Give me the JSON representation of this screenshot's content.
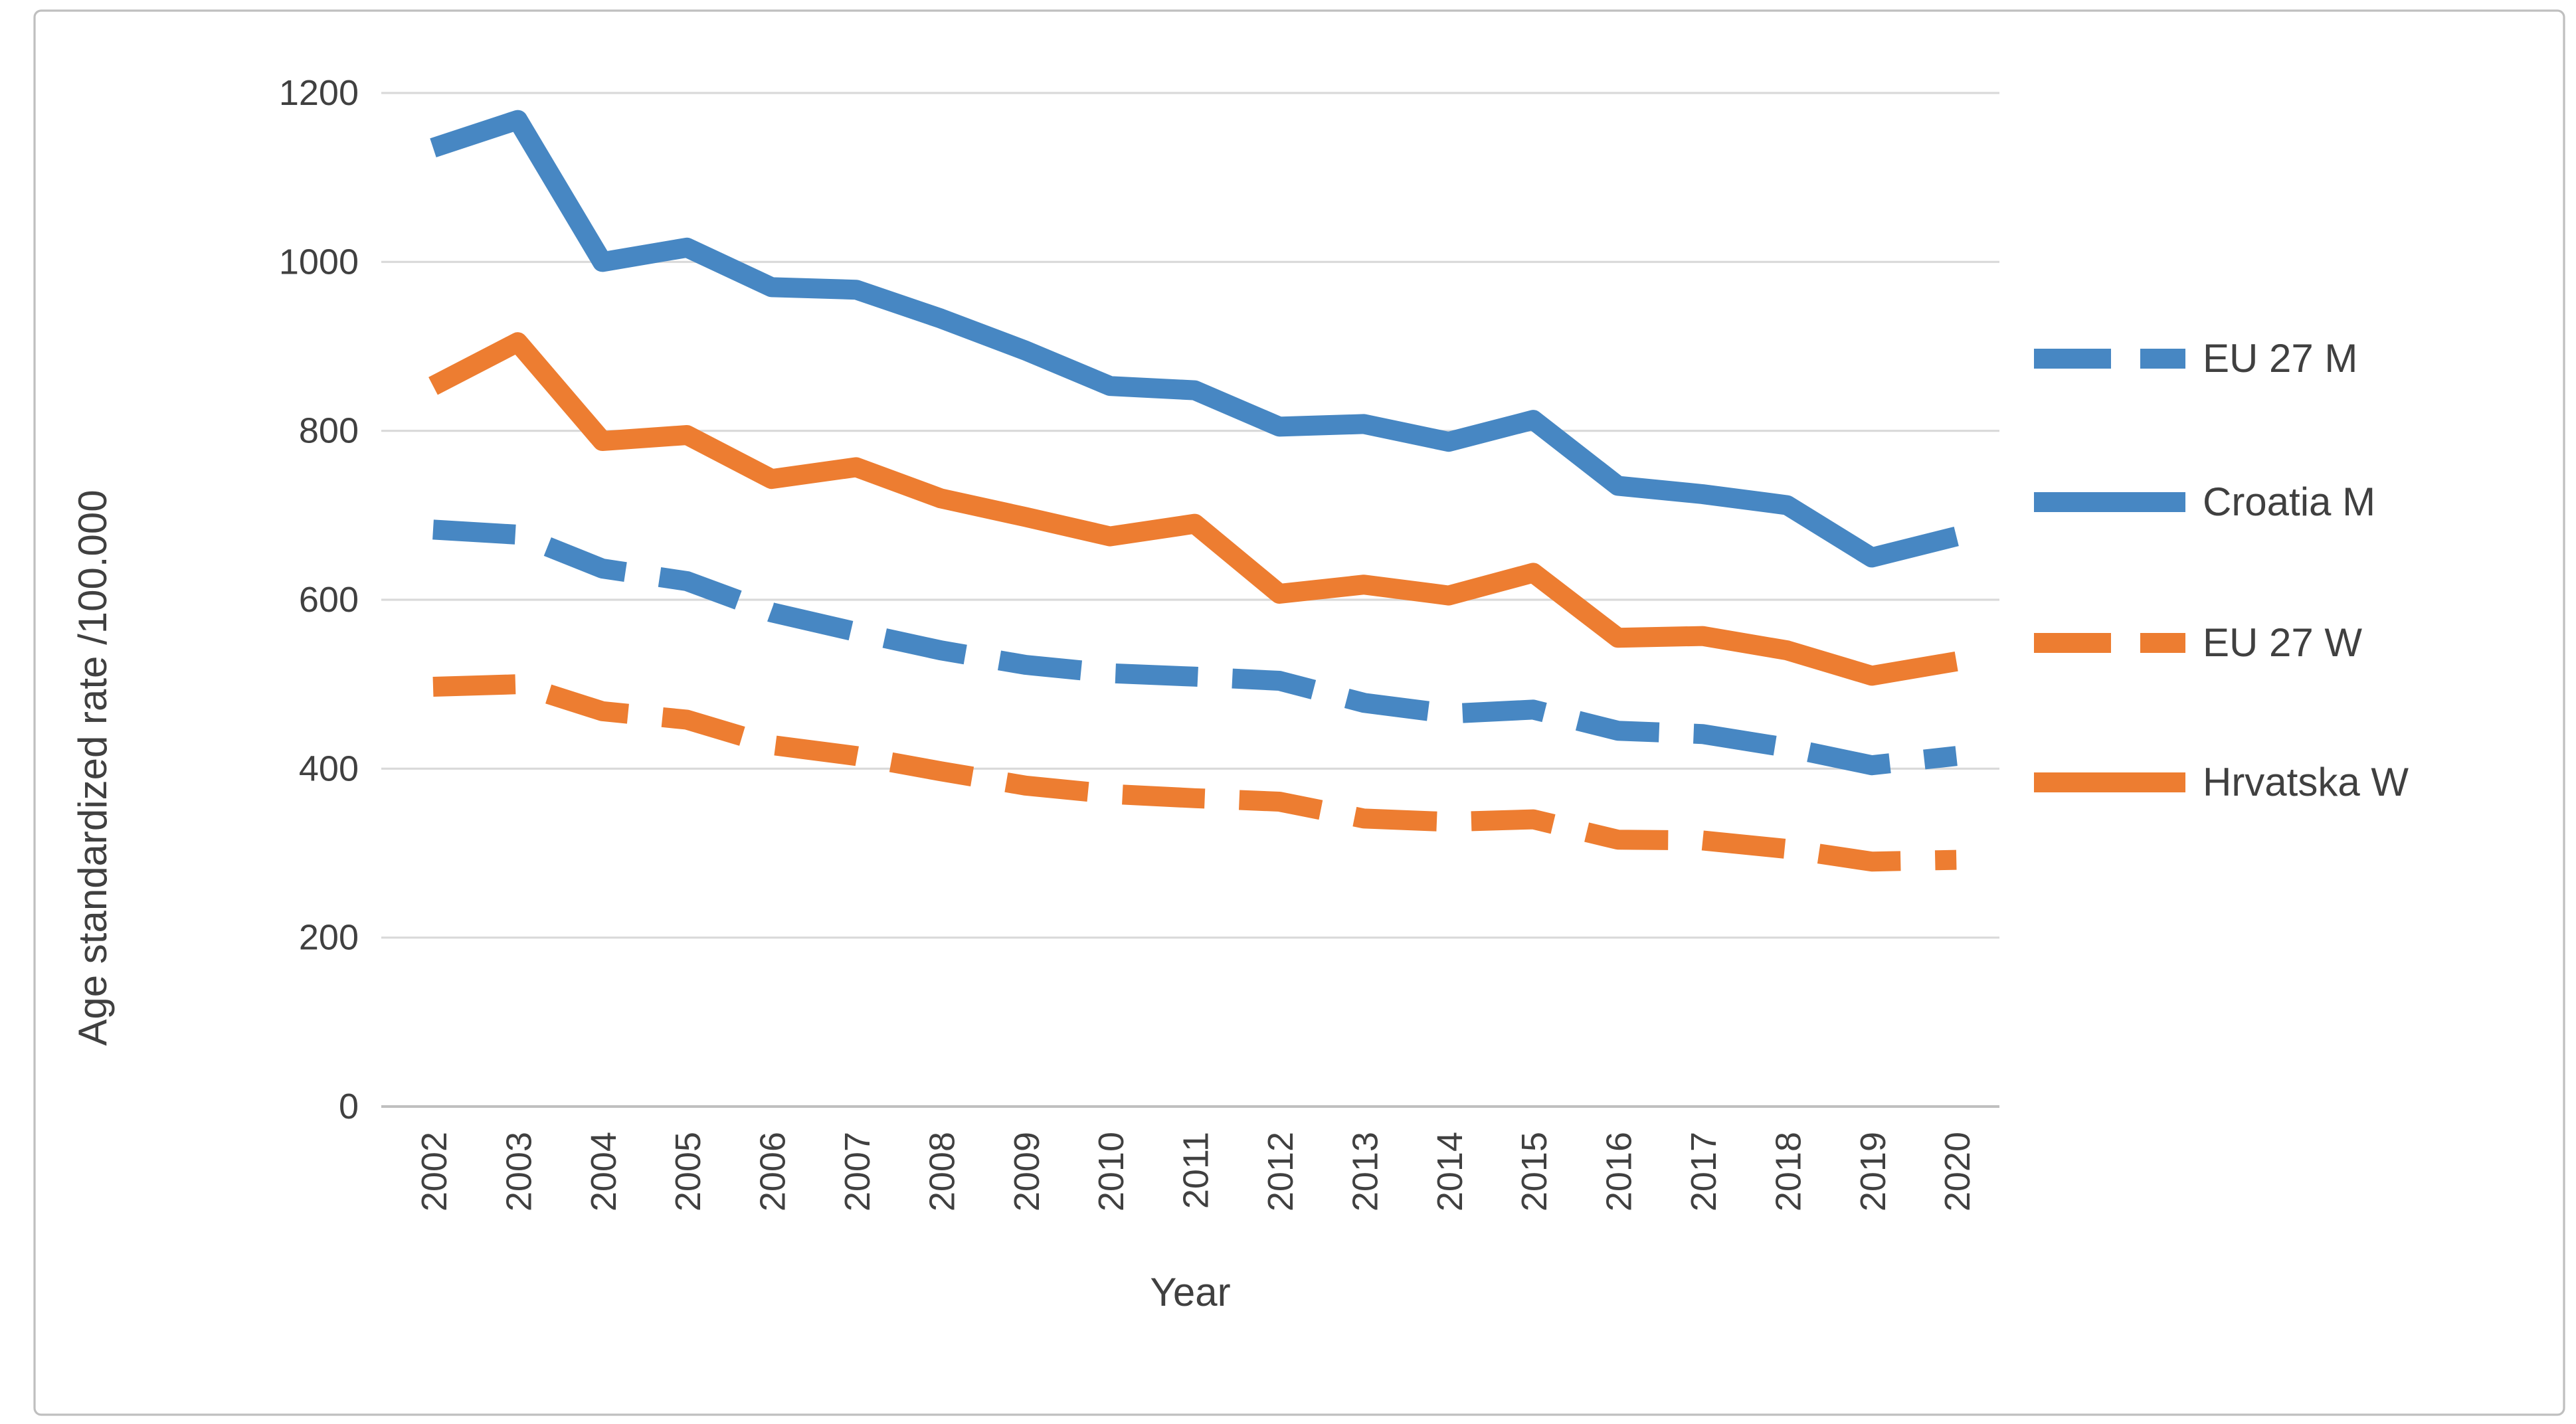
{
  "chart_data": {
    "type": "line",
    "title": "",
    "xlabel": "Year",
    "ylabel": "Age standardized rate /100.000",
    "x": [
      2002,
      2003,
      2004,
      2005,
      2006,
      2007,
      2008,
      2009,
      2010,
      2011,
      2012,
      2013,
      2014,
      2015,
      2016,
      2017,
      2018,
      2019,
      2020
    ],
    "ylim": [
      0,
      1200
    ],
    "ytick_step": 200,
    "yticks": [
      0,
      200,
      400,
      600,
      800,
      1000,
      1200
    ],
    "grid": true,
    "legend_position": "right",
    "series": [
      {
        "name": "EU 27 M",
        "color": "#4787C3",
        "dashed": true,
        "values": [
          683,
          677,
          637,
          622,
          585,
          562,
          540,
          523,
          513,
          509,
          504,
          478,
          465,
          470,
          445,
          441,
          425,
          404,
          415
        ]
      },
      {
        "name": "Croatia M",
        "color": "#4787C3",
        "dashed": false,
        "values": [
          1135,
          1168,
          1000,
          1017,
          970,
          967,
          933,
          895,
          853,
          848,
          805,
          808,
          787,
          813,
          735,
          725,
          712,
          650,
          675
        ]
      },
      {
        "name": "EU 27 W",
        "color": "#ED7D31",
        "dashed": true,
        "values": [
          497,
          500,
          468,
          458,
          428,
          415,
          397,
          380,
          370,
          365,
          361,
          341,
          337,
          340,
          316,
          315,
          305,
          290,
          292
        ]
      },
      {
        "name": "Hrvatska W",
        "color": "#ED7D31",
        "dashed": false,
        "values": [
          853,
          905,
          788,
          795,
          743,
          757,
          720,
          698,
          675,
          690,
          607,
          618,
          605,
          632,
          555,
          557,
          540,
          510,
          527
        ]
      }
    ]
  },
  "style": {
    "text_color": "#404040",
    "gridline_color": "#D9D9D9",
    "axis_line_color": "#BFBFBF",
    "border_color": "#BFBFBF",
    "background": "#FFFFFF"
  }
}
